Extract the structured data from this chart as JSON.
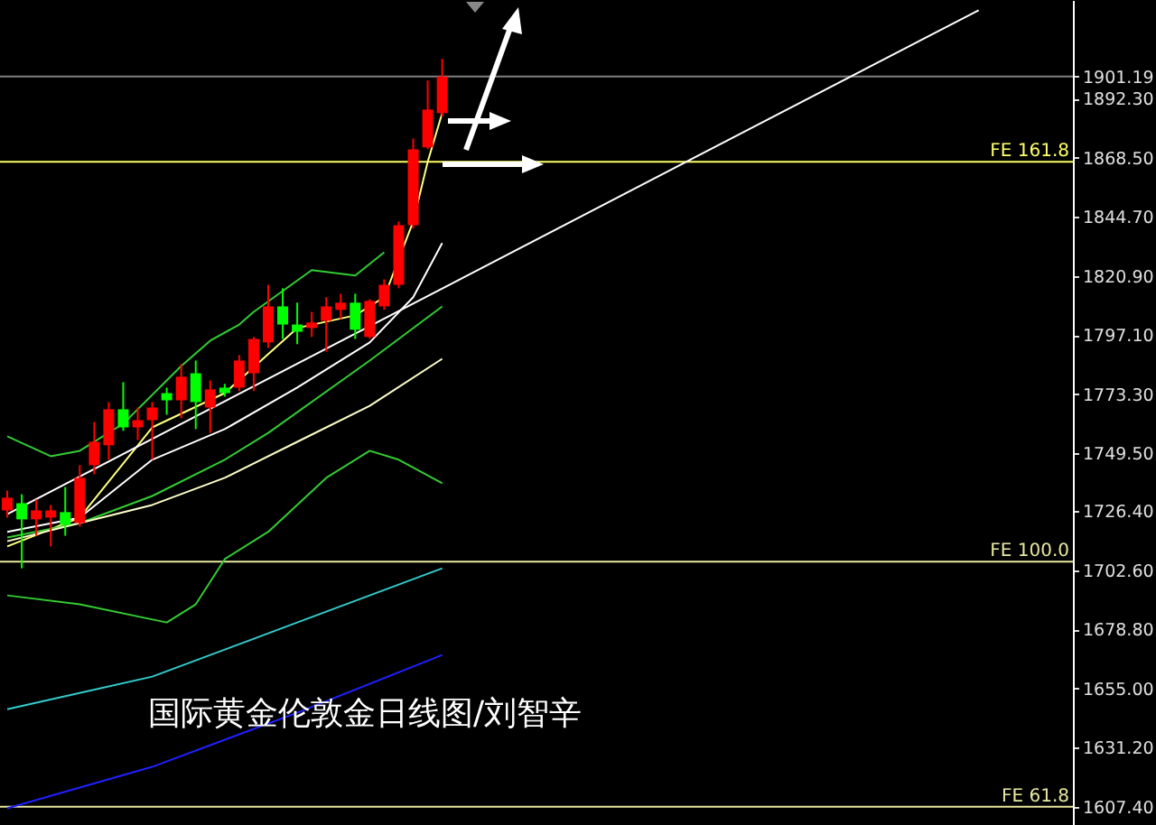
{
  "chart_data": {
    "type": "candlestick",
    "title": "国际黄金伦敦金日线图/刘智辛",
    "categories": [
      null,
      null,
      null,
      null,
      null,
      null,
      null,
      null,
      null,
      null,
      null,
      null,
      null,
      null,
      null,
      null,
      null,
      null,
      null,
      null,
      null,
      null,
      null,
      null,
      null,
      null,
      null,
      null,
      null,
      null,
      null,
      null,
      null,
      null,
      null,
      null,
      null,
      null,
      null,
      null,
      null,
      null,
      null,
      null,
      null,
      null,
      null,
      null,
      null,
      null,
      null,
      null,
      null,
      null,
      null,
      null,
      null,
      null,
      null,
      null,
      null,
      null,
      null,
      null,
      null,
      null,
      null,
      null,
      null,
      null,
      null,
      null,
      null,
      null
    ],
    "ohlc": [
      [
        1726.6,
        1734.6,
        1723.7,
        1731.7
      ],
      [
        1729.5,
        1733.1,
        1703.3,
        1723.0
      ],
      [
        1723.0,
        1731.0,
        1716.4,
        1726.6
      ],
      [
        1723.7,
        1728.8,
        1712.1,
        1726.6
      ],
      [
        1725.9,
        1736.0,
        1716.4,
        1720.8
      ],
      [
        1721.5,
        1744.8,
        1720.1,
        1739.7
      ],
      [
        1744.8,
        1762.2,
        1741.1,
        1754.2
      ],
      [
        1752.8,
        1770.2,
        1747.0,
        1767.3
      ],
      [
        1767.3,
        1778.2,
        1758.6,
        1760.0
      ],
      [
        1760.0,
        1768.0,
        1754.9,
        1762.9
      ],
      [
        1762.9,
        1770.2,
        1747.0,
        1768.0
      ],
      [
        1773.8,
        1776.0,
        1765.1,
        1770.9
      ],
      [
        1770.9,
        1785.5,
        1763.7,
        1780.4
      ],
      [
        1781.8,
        1786.9,
        1759.3,
        1770.2
      ],
      [
        1768.0,
        1778.9,
        1757.8,
        1775.3
      ],
      [
        1776.0,
        1777.5,
        1772.4,
        1773.8
      ],
      [
        1776.0,
        1789.1,
        1774.6,
        1786.9
      ],
      [
        1781.8,
        1796.4,
        1774.6,
        1795.6
      ],
      [
        1794.2,
        1817.4,
        1792.0,
        1808.7
      ],
      [
        1808.7,
        1816.0,
        1795.6,
        1801.4
      ],
      [
        1801.4,
        1810.2,
        1793.5,
        1798.5
      ],
      [
        1800.0,
        1806.5,
        1796.4,
        1802.2
      ],
      [
        1802.9,
        1812.4,
        1790.5,
        1808.7
      ],
      [
        1807.3,
        1813.8,
        1803.6,
        1810.2
      ],
      [
        1810.2,
        1813.8,
        1795.6,
        1799.3
      ],
      [
        1796.4,
        1811.6,
        1795.6,
        1810.9
      ],
      [
        1808.7,
        1819.6,
        1807.3,
        1817.4
      ],
      [
        1817.4,
        1842.9,
        1816.0,
        1841.4
      ],
      [
        1841.4,
        1876.3,
        1840.0,
        1871.9
      ],
      [
        1872.7,
        1899.6,
        1872.0,
        1887.9
      ],
      [
        1886.5,
        1908.3,
        1885.0,
        1901.19
      ],
      null,
      null,
      null,
      null,
      null,
      null,
      null,
      null,
      null,
      null,
      null,
      null,
      null,
      null,
      null,
      null,
      null,
      null,
      null,
      null,
      null,
      null,
      null,
      null,
      null,
      null,
      null,
      null,
      null,
      null,
      null,
      null,
      null,
      null,
      null,
      null,
      null,
      null,
      null,
      null,
      null,
      null,
      null
    ],
    "colors": [
      "#ff0000",
      "#00ff00",
      "#ff0000",
      "#ff0000",
      "#00ff00",
      "#ff0000",
      "#ff0000",
      "#ff0000",
      "#00ff00",
      "#ff0000",
      "#ff0000",
      "#00ff00",
      "#ff0000",
      "#00ff00",
      "#ff0000",
      "#00ff00",
      "#ff0000",
      "#ff0000",
      "#ff0000",
      "#00ff00",
      "#00ff00",
      "#ff0000",
      "#ff0000",
      "#ff0000",
      "#00ff00",
      "#ff0000",
      "#ff0000",
      "#ff0000",
      "#ff0000",
      "#ff0000",
      "#ff0000",
      null,
      null,
      null,
      null,
      null,
      null,
      null,
      null,
      null,
      null,
      null,
      null,
      null,
      null,
      null,
      null,
      null,
      null,
      null,
      null,
      null,
      null,
      null,
      null,
      null,
      null,
      null,
      null,
      null,
      null,
      null,
      null,
      null,
      null,
      null,
      null,
      null,
      null,
      null,
      null,
      null,
      null,
      null
    ],
    "series": [
      {
        "type": "line",
        "color": "#ffff80",
        "values": [
          1712.1,
          null,
          null,
          null,
          null,
          1723.7,
          null,
          null,
          null,
          null,
          1760.0,
          null,
          null,
          null,
          null,
          1773.8,
          null,
          null,
          null,
          null,
          1800.0,
          null,
          null,
          null,
          1805.1,
          null,
          1812.4,
          null,
          1842.9,
          1866.9,
          1886.5,
          null,
          null,
          null,
          null,
          null,
          null,
          null,
          null,
          null,
          null,
          null,
          null,
          null,
          null,
          null,
          null,
          null,
          null,
          null,
          null,
          null,
          null,
          null,
          null,
          null,
          null,
          null,
          null,
          null,
          null,
          null,
          null,
          null,
          null,
          null,
          null,
          null,
          null,
          null,
          null,
          null,
          null,
          null
        ]
      },
      {
        "type": "line",
        "color": "#ffffff",
        "values": [
          1718.0,
          null,
          null,
          null,
          null,
          1723.7,
          null,
          null,
          null,
          null,
          1747.0,
          null,
          null,
          null,
          null,
          1759.3,
          null,
          null,
          null,
          null,
          1776.0,
          null,
          null,
          null,
          null,
          1794.2,
          null,
          null,
          1812.4,
          null,
          1834.2,
          null,
          null,
          null,
          null,
          null,
          null,
          null,
          null,
          null,
          null,
          null,
          null,
          null,
          null,
          null,
          null,
          null,
          null,
          null,
          null,
          null,
          null,
          null,
          null,
          null,
          null,
          null,
          null,
          null,
          null,
          null,
          null,
          null,
          null,
          null,
          null,
          null,
          null,
          null,
          null,
          null,
          null,
          null
        ]
      },
      {
        "type": "line",
        "color": "#33cc33",
        "values": [
          1756.4,
          null,
          null,
          1748.4,
          null,
          1750.6,
          null,
          null,
          1761.5,
          null,
          null,
          null,
          1784.7,
          null,
          1794.9,
          null,
          1801.4,
          1806.5,
          null,
          null,
          null,
          1823.3,
          null,
          null,
          1821.1,
          null,
          1830.5,
          null,
          null,
          null,
          null,
          null,
          null,
          null,
          null,
          null,
          null,
          null,
          null,
          null,
          null,
          null,
          null,
          null,
          null,
          null,
          null,
          null,
          null,
          null,
          null,
          null,
          null,
          null,
          null,
          null,
          null,
          null,
          null,
          null,
          null,
          null,
          null,
          null,
          null,
          null,
          null,
          null,
          null,
          null,
          null,
          null,
          null,
          null
        ]
      },
      {
        "type": "line",
        "color": "#33cc33",
        "values": [
          1715.7,
          null,
          null,
          null,
          null,
          1721.5,
          null,
          null,
          null,
          null,
          1732.4,
          null,
          null,
          null,
          null,
          1747.0,
          null,
          null,
          1757.8,
          null,
          null,
          null,
          null,
          null,
          null,
          1786.9,
          null,
          null,
          null,
          null,
          1808.7,
          null,
          null,
          null,
          null,
          null,
          null,
          null,
          null,
          null,
          null,
          null,
          null,
          null,
          null,
          null,
          null,
          null,
          null,
          null,
          null,
          null,
          null,
          null,
          null,
          null,
          null,
          null,
          null,
          null,
          null,
          null,
          null,
          null,
          null,
          null,
          null,
          null,
          null,
          null,
          null,
          null,
          null,
          null
        ]
      },
      {
        "type": "line",
        "color": "#33cc33",
        "values": [
          1692.4,
          null,
          null,
          null,
          null,
          1688.8,
          null,
          null,
          null,
          null,
          null,
          1681.5,
          null,
          1688.8,
          null,
          1707.0,
          null,
          null,
          1718.0,
          null,
          null,
          null,
          1739.7,
          null,
          null,
          1750.6,
          null,
          1747.0,
          null,
          null,
          1737.5,
          null,
          null,
          null,
          null,
          null,
          null,
          null,
          null,
          null,
          null,
          null,
          null,
          null,
          null,
          null,
          null,
          null,
          null,
          null,
          null,
          null,
          null,
          null,
          null,
          null,
          null,
          null,
          null,
          null,
          null,
          null,
          null,
          null,
          null,
          null,
          null,
          null,
          null,
          null,
          null,
          null,
          null,
          null
        ]
      },
      {
        "type": "line",
        "color": "#ffffcc",
        "values": [
          1714.2,
          null,
          null,
          null,
          null,
          1721.5,
          null,
          null,
          null,
          null,
          1728.8,
          null,
          null,
          null,
          null,
          1739.7,
          null,
          null,
          null,
          null,
          1754.2,
          null,
          null,
          null,
          null,
          1768.7,
          null,
          null,
          null,
          null,
          1787.6,
          null,
          null,
          null,
          null,
          null,
          null,
          null,
          null,
          null,
          null,
          null,
          null,
          null,
          null,
          null,
          null,
          null,
          null,
          null,
          null,
          null,
          null,
          null,
          null,
          null,
          null,
          null,
          null,
          null,
          null,
          null,
          null,
          null,
          null,
          null,
          null,
          null,
          null,
          null,
          null,
          null,
          null,
          null
        ]
      },
      {
        "type": "line",
        "color": "#33cccc",
        "values": [
          1646.6,
          null,
          null,
          null,
          null,
          null,
          null,
          null,
          null,
          null,
          1659.7,
          null,
          null,
          null,
          null,
          null,
          null,
          null,
          null,
          null,
          1681.5,
          null,
          null,
          null,
          null,
          null,
          null,
          null,
          null,
          null,
          1703.3,
          null,
          null,
          null,
          null,
          null,
          null,
          null,
          null,
          null,
          null,
          null,
          null,
          null,
          null,
          null,
          null,
          null,
          null,
          null,
          null,
          null,
          null,
          null,
          null,
          null,
          null,
          null,
          null,
          null,
          null,
          null,
          null,
          null,
          null,
          null,
          null,
          null,
          null,
          null,
          null,
          null,
          null,
          null
        ]
      },
      {
        "type": "line",
        "color": "#2020ff",
        "values": [
          1606.7,
          null,
          null,
          null,
          null,
          null,
          null,
          null,
          null,
          null,
          1623.4,
          null,
          null,
          null,
          null,
          null,
          null,
          null,
          null,
          null,
          1645.2,
          null,
          null,
          null,
          null,
          null,
          null,
          null,
          null,
          null,
          1668.4,
          null,
          null,
          null,
          null,
          null,
          null,
          null,
          null,
          null,
          null,
          null,
          null,
          null,
          null,
          null,
          null,
          null,
          null,
          null,
          null,
          null,
          null,
          null,
          null,
          null,
          null,
          null,
          null,
          null,
          null,
          null,
          null,
          null,
          null,
          null,
          null,
          null,
          null,
          null,
          null,
          null,
          null,
          null
        ]
      },
      {
        "type": "line",
        "color": "#ffffff",
        "values": [
          1725.1,
          null,
          null,
          null,
          null,
          null,
          null,
          null,
          null,
          null,
          null,
          null,
          null,
          null,
          null,
          null,
          null,
          null,
          null,
          null,
          null,
          null,
          null,
          null,
          null,
          null,
          null,
          null,
          null,
          null,
          null,
          null,
          null,
          null,
          null,
          null,
          null,
          null,
          null,
          null,
          null,
          null,
          null,
          null,
          null,
          null,
          null,
          null,
          null,
          null,
          null,
          null,
          null,
          null,
          null,
          null,
          null,
          null,
          null,
          null,
          null,
          null,
          null,
          null,
          null,
          null,
          null,
          1927.9,
          null,
          null,
          null,
          null,
          null,
          null
        ]
      }
    ],
    "ylim": [
      1600,
      1932
    ],
    "yticks": [
      {
        "value": 1901.19,
        "label": "1901.19"
      },
      {
        "value": 1892.3,
        "label": "1892.30"
      },
      {
        "value": 1868.5,
        "label": "1868.50"
      },
      {
        "value": 1844.7,
        "label": "1844.70"
      },
      {
        "value": 1820.9,
        "label": "1820.90"
      },
      {
        "value": 1797.1,
        "label": "1797.10"
      },
      {
        "value": 1773.3,
        "label": "1773.30"
      },
      {
        "value": 1749.5,
        "label": "1749.50"
      },
      {
        "value": 1726.4,
        "label": "1726.40"
      },
      {
        "value": 1702.6,
        "label": "1702.60"
      },
      {
        "value": 1678.8,
        "label": "1678.80"
      },
      {
        "value": 1655.0,
        "label": "1655.00"
      },
      {
        "value": 1631.2,
        "label": "1631.20"
      },
      {
        "value": 1607.4,
        "label": "1607.40"
      }
    ],
    "tick_labels": "y",
    "ref_lines": [
      {
        "axis": "y",
        "value": 1901.19,
        "color": "#808080"
      },
      {
        "axis": "y",
        "value": 1866.9,
        "label": "FE 161.8",
        "color": "#ffff66"
      },
      {
        "axis": "y",
        "value": 1706.0,
        "label": "FE 100.0",
        "color": "#e8e8a0"
      },
      {
        "axis": "y",
        "value": 1607.4,
        "label": "FE 61.8",
        "color": "#e8e8a0"
      }
    ]
  }
}
